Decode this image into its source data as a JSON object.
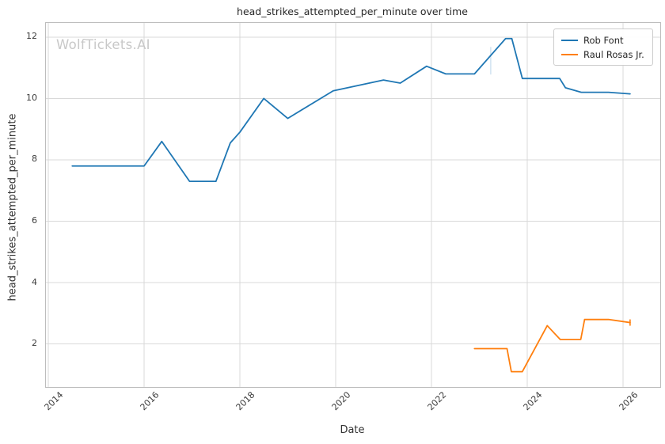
{
  "watermark": "WolfTickets.AI",
  "chart_data": {
    "type": "line",
    "title": "head_strikes_attempted_per_minute over time",
    "xlabel": "Date",
    "ylabel": "head_strikes_attempted_per_minute",
    "xlim": [
      2013.95,
      2026.78
    ],
    "ylim": [
      0.6,
      12.46
    ],
    "xticks": [
      2014,
      2016,
      2018,
      2020,
      2022,
      2024,
      2026
    ],
    "yticks": [
      2,
      4,
      6,
      8,
      10,
      12
    ],
    "grid": true,
    "legend_position": "upper-right",
    "colors": {
      "grid": "#d9d9d9",
      "spine": "#bdbdbd",
      "text": "#3a3a3a",
      "watermark": "#c8c8c8"
    },
    "series": [
      {
        "name": "Rob Font",
        "color": "#1f77b4",
        "x": [
          2014.5,
          2016.0,
          2016.37,
          2016.95,
          2017.5,
          2017.8,
          2018.0,
          2018.5,
          2019.0,
          2019.95,
          2021.0,
          2021.35,
          2021.9,
          2022.3,
          2022.9,
          2023.55,
          2023.68,
          2023.9,
          2024.68,
          2024.8,
          2025.13,
          2025.7,
          2026.15
        ],
        "y": [
          7.8,
          7.8,
          8.6,
          7.3,
          7.3,
          8.55,
          8.9,
          10.0,
          9.35,
          10.25,
          10.6,
          10.5,
          11.05,
          10.8,
          10.8,
          11.95,
          11.95,
          10.65,
          10.65,
          10.35,
          10.2,
          10.2,
          10.15
        ]
      },
      {
        "name": "Raul Rosas Jr.",
        "color": "#ff7f0e",
        "end_tick": true,
        "x": [
          2022.9,
          2023.58,
          2023.67,
          2023.9,
          2024.42,
          2024.69,
          2025.12,
          2025.2,
          2025.7,
          2026.15
        ],
        "y": [
          1.85,
          1.85,
          1.1,
          1.1,
          2.6,
          2.15,
          2.15,
          2.8,
          2.8,
          2.7
        ]
      }
    ],
    "artifact_marker": {
      "x": 2023.24,
      "y_from": 10.78,
      "y_to": 11.68,
      "color": "#c7ddee"
    }
  }
}
